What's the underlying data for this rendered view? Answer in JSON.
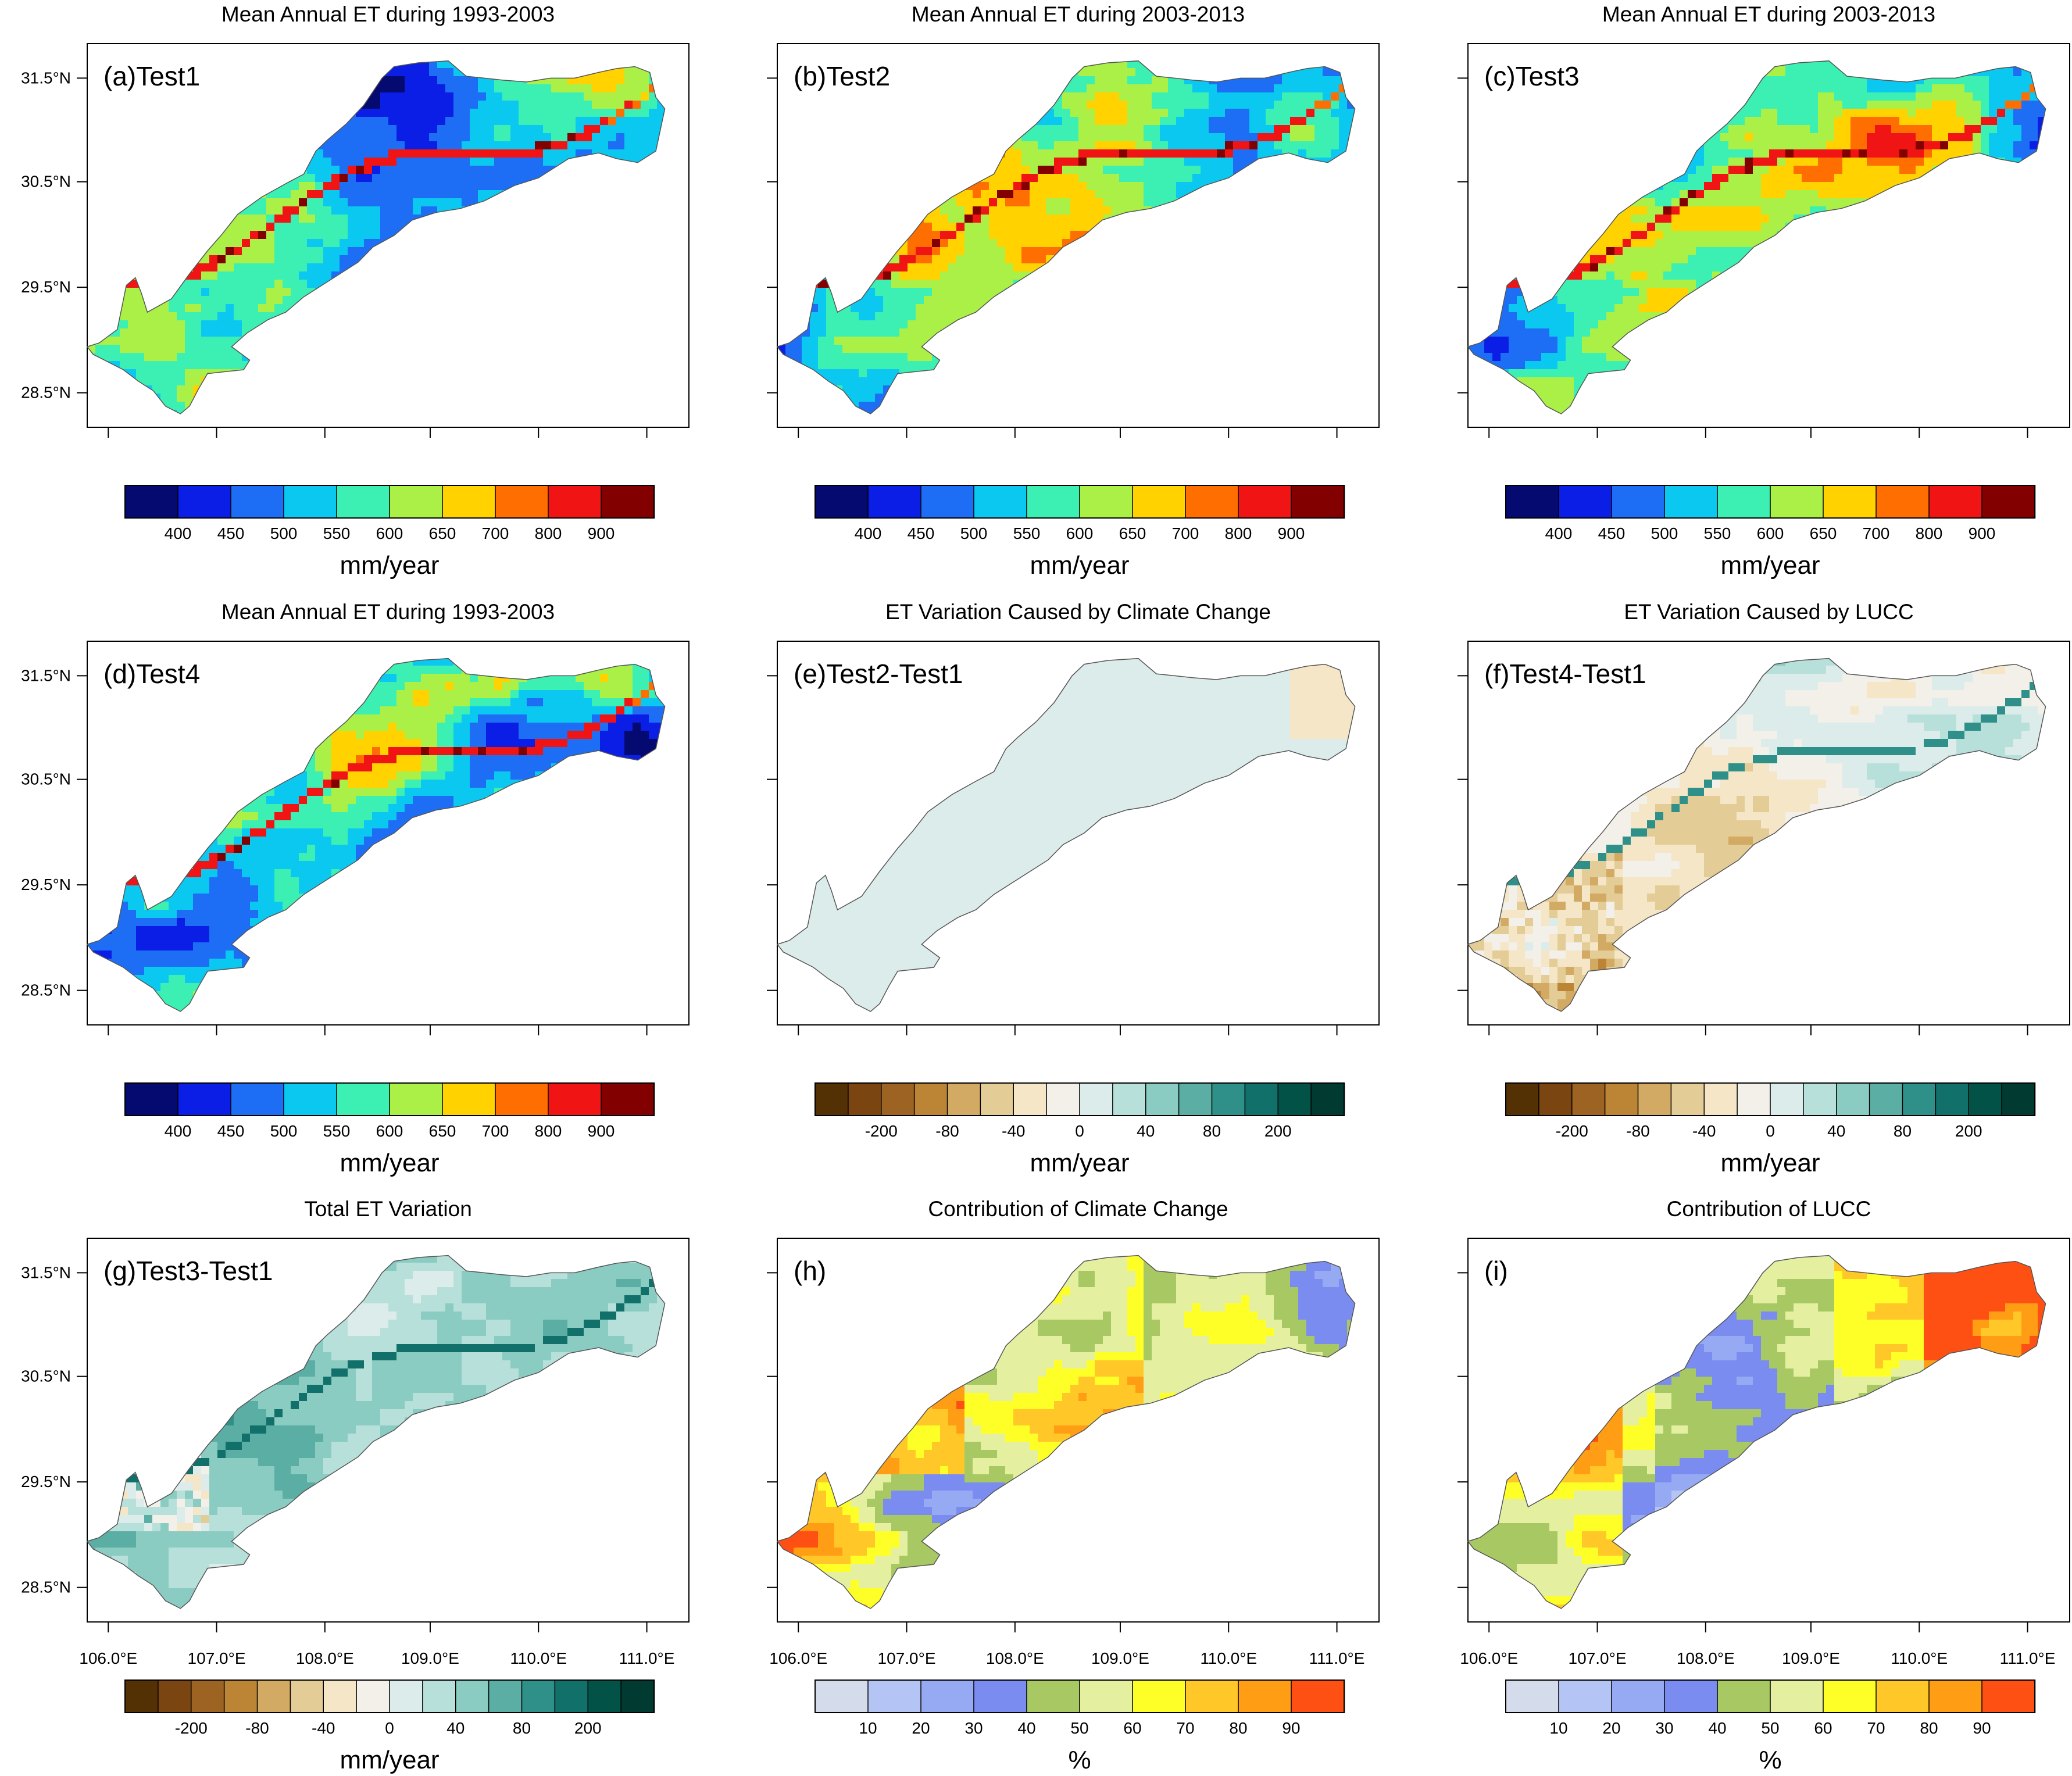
{
  "palettes": {
    "et": [
      "#050a70",
      "#0a1ee6",
      "#1e6ef5",
      "#0ac8f0",
      "#3cf0b4",
      "#aaf046",
      "#ffd200",
      "#ff6e00",
      "#f01414",
      "#820000"
    ],
    "diff": [
      "#543005",
      "#7a4510",
      "#9c6322",
      "#bc8536",
      "#d2aa64",
      "#e4cc96",
      "#f4e6c6",
      "#f2f0e8",
      "#dcecea",
      "#b8e0da",
      "#8accc2",
      "#5aaea4",
      "#2e9088",
      "#12706a",
      "#035248",
      "#013a30"
    ],
    "contrib": [
      "#d4dcec",
      "#b4c4f4",
      "#96aaf4",
      "#7a8cf0",
      "#a8c864",
      "#e4f0a0",
      "#ffff28",
      "#ffc828",
      "#ff9e14",
      "#ff5014"
    ]
  },
  "lon_ticks": [
    "106.0°E",
    "107.0°E",
    "108.0°E",
    "109.0°E",
    "110.0°E",
    "111.0°E"
  ],
  "lat_ticks": [
    "31.5°N",
    "30.5°N",
    "29.5°N",
    "28.5°N"
  ],
  "panels": [
    {
      "id": "a",
      "title": "Mean Annual ET during 1993-2003",
      "label": "(a)Test1",
      "scheme": "et",
      "colorbar": {
        "palette": "et",
        "ticks": [
          "400",
          "450",
          "500",
          "550",
          "600",
          "650",
          "700",
          "800",
          "900"
        ],
        "unit": "mm/year"
      }
    },
    {
      "id": "b",
      "title": "Mean Annual ET during 2003-2013",
      "label": "(b)Test2",
      "scheme": "et",
      "colorbar": {
        "palette": "et",
        "ticks": [
          "400",
          "450",
          "500",
          "550",
          "600",
          "650",
          "700",
          "800",
          "900"
        ],
        "unit": "mm/year"
      }
    },
    {
      "id": "c",
      "title": "Mean Annual ET during 2003-2013",
      "label": "(c)Test3",
      "scheme": "et",
      "colorbar": {
        "palette": "et",
        "ticks": [
          "400",
          "450",
          "500",
          "550",
          "600",
          "650",
          "700",
          "800",
          "900"
        ],
        "unit": "mm/year"
      }
    },
    {
      "id": "d",
      "title": "Mean Annual ET during 1993-2003",
      "label": "(d)Test4",
      "scheme": "et",
      "colorbar": {
        "palette": "et",
        "ticks": [
          "400",
          "450",
          "500",
          "550",
          "600",
          "650",
          "700",
          "800",
          "900"
        ],
        "unit": "mm/year"
      }
    },
    {
      "id": "e",
      "title": "ET Variation Caused by Climate Change",
      "label": "(e)Test2-Test1",
      "scheme": "diff_smooth",
      "colorbar": {
        "palette": "diff",
        "ticks": [
          "-200",
          "-80",
          "-40",
          "0",
          "40",
          "80",
          "200"
        ],
        "unit": "mm/year"
      }
    },
    {
      "id": "f",
      "title": "ET Variation Caused by LUCC",
      "label": "(f)Test4-Test1",
      "scheme": "diff",
      "colorbar": {
        "palette": "diff",
        "ticks": [
          "-200",
          "-80",
          "-40",
          "0",
          "40",
          "80",
          "200"
        ],
        "unit": "mm/year"
      }
    },
    {
      "id": "g",
      "title": "Total ET Variation",
      "label": "(g)Test3-Test1",
      "scheme": "diff_total",
      "colorbar": {
        "palette": "diff",
        "ticks": [
          "-200",
          "-80",
          "-40",
          "0",
          "40",
          "80",
          "200"
        ],
        "unit": "mm/year"
      }
    },
    {
      "id": "h",
      "title": "Contribution of Climate Change",
      "label": "(h)",
      "scheme": "contrib_climate",
      "colorbar": {
        "palette": "contrib",
        "ticks": [
          "10",
          "20",
          "30",
          "40",
          "50",
          "60",
          "70",
          "80",
          "90"
        ],
        "unit": "%"
      }
    },
    {
      "id": "i",
      "title": "Contribution of LUCC",
      "label": "(i)",
      "scheme": "contrib_lucc",
      "colorbar": {
        "palette": "contrib",
        "ticks": [
          "10",
          "20",
          "30",
          "40",
          "50",
          "60",
          "70",
          "80",
          "90"
        ],
        "unit": "%"
      }
    }
  ]
}
